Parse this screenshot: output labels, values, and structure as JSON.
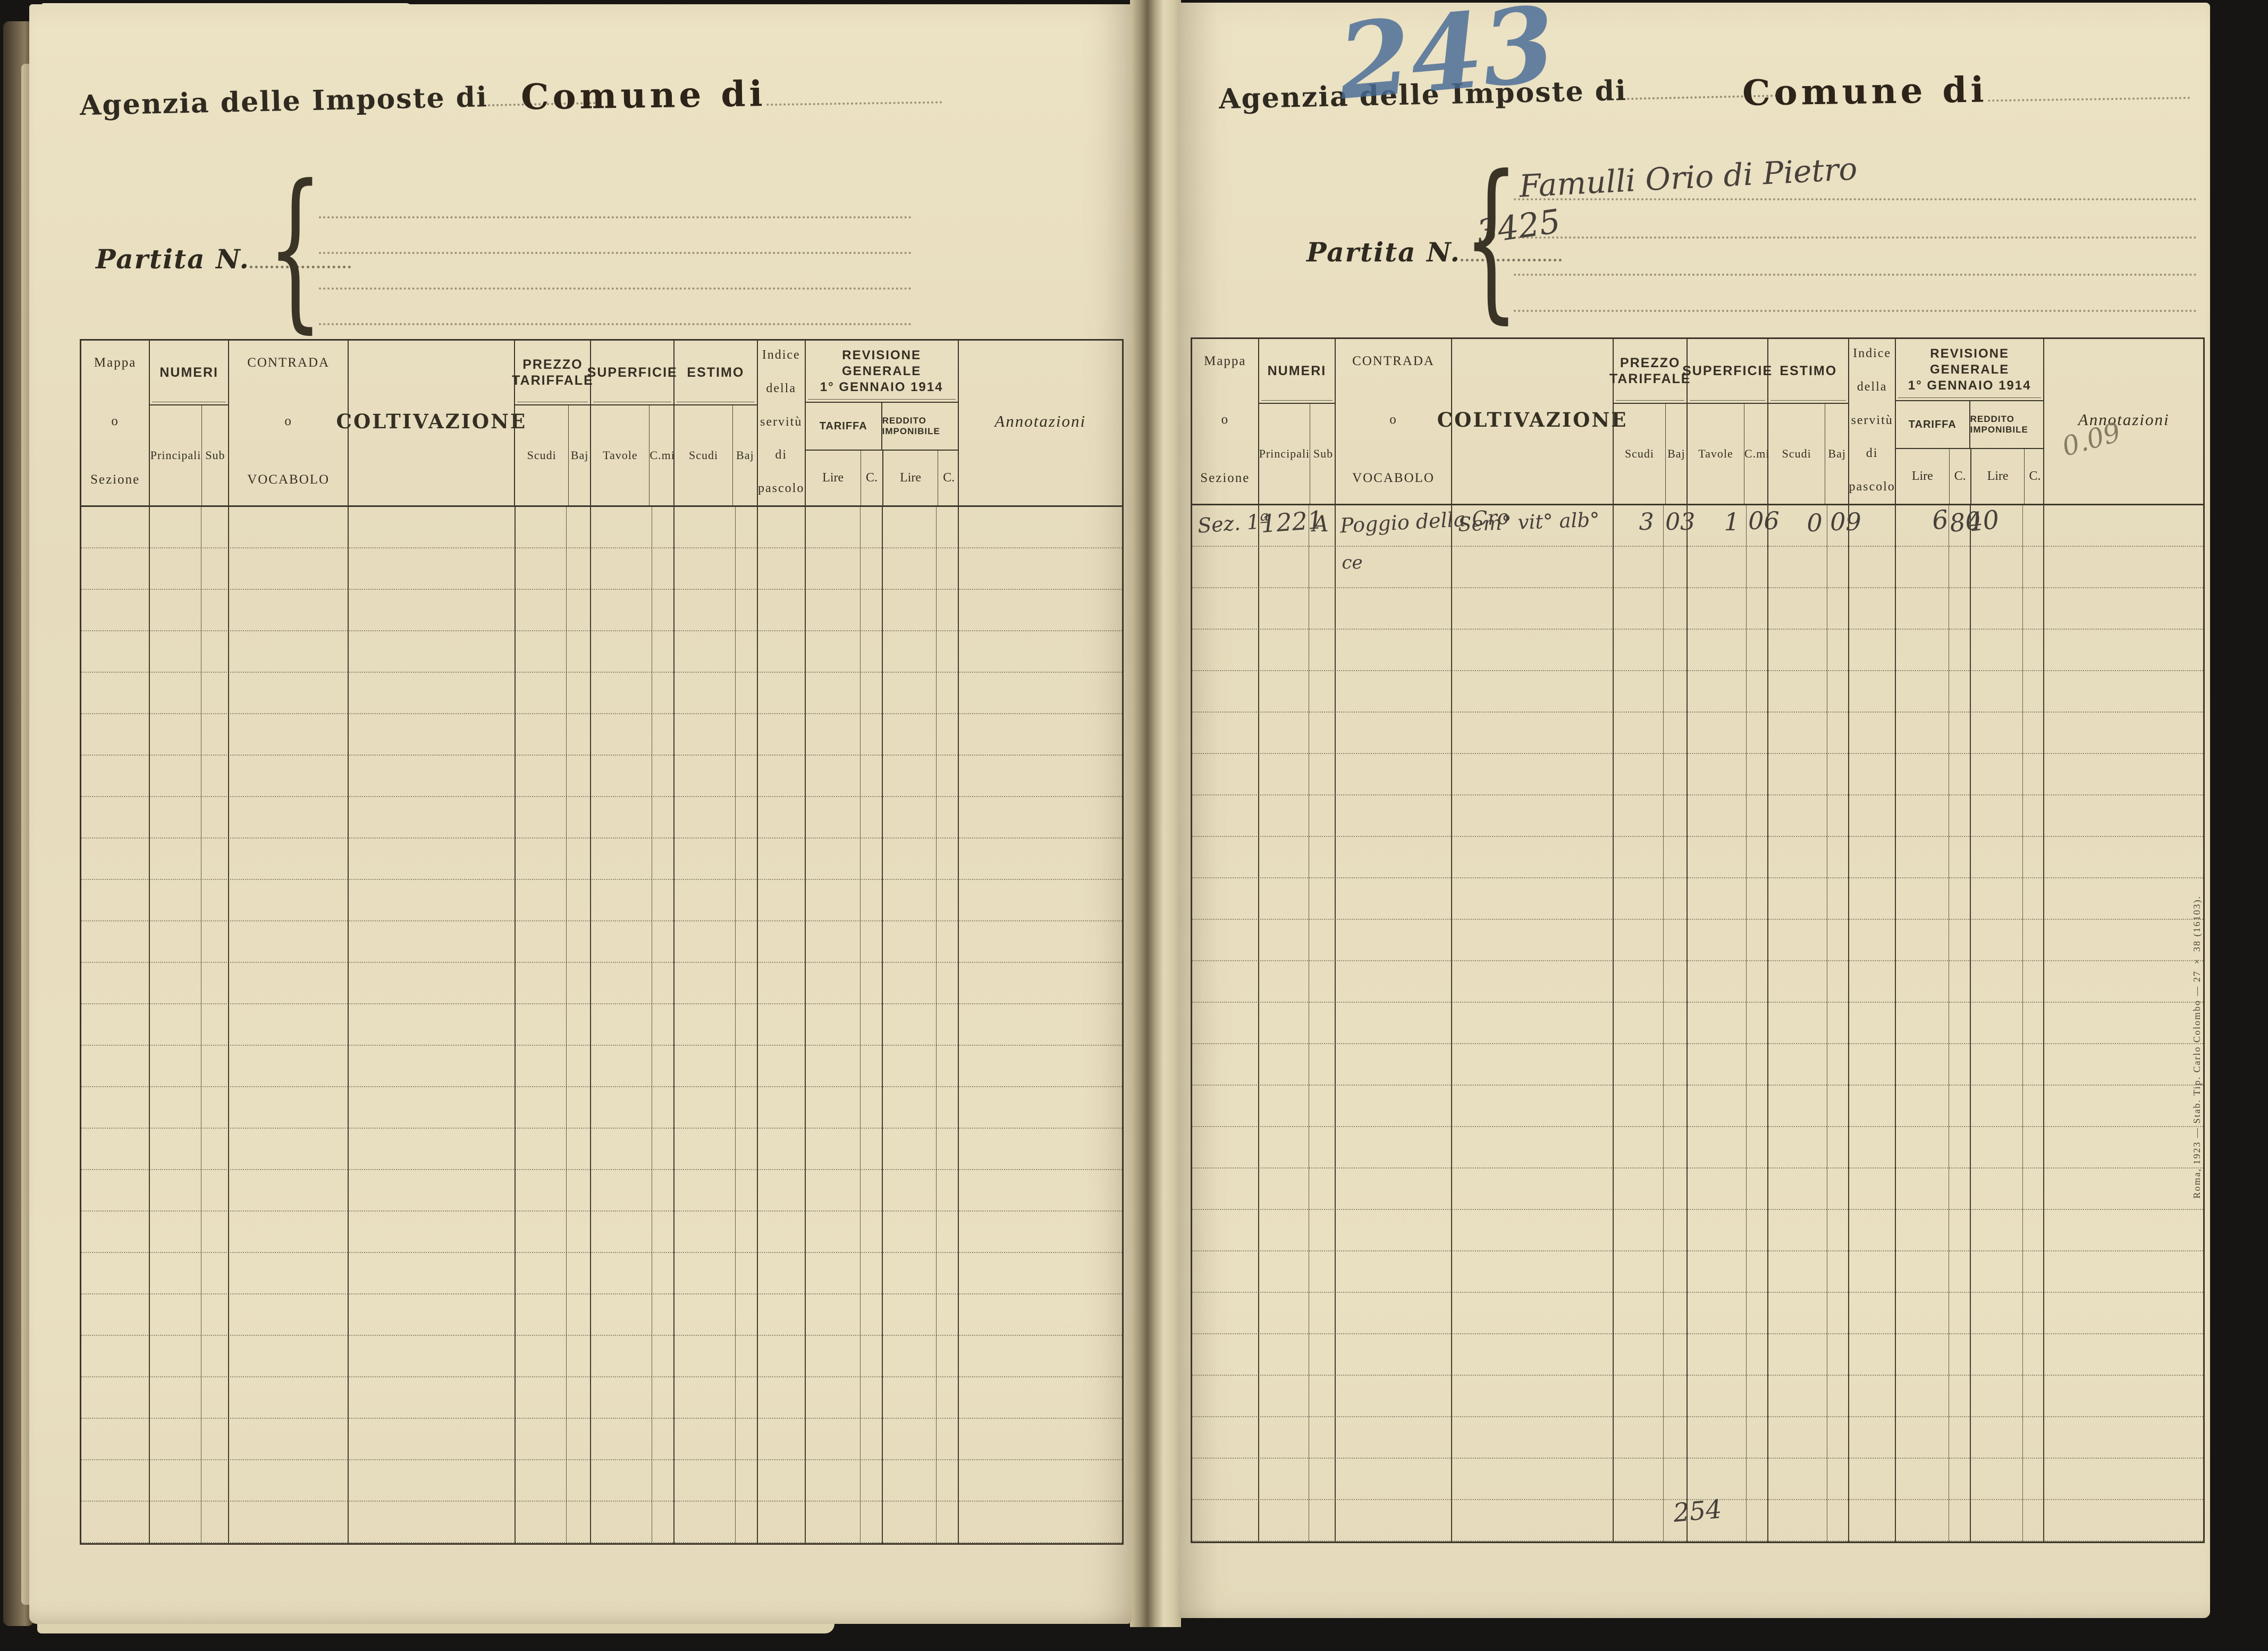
{
  "colors": {
    "paper": "#e8dec0",
    "printed_ink": "#3a3427",
    "handwriting_ink": "#46403a",
    "pencil_blue": "#5b7ba6",
    "pencil_gray": "#8c8471",
    "background": "#161513"
  },
  "document": {
    "left_page": {
      "agenzia_label": "Agenzia delle Imposte di",
      "comune_label": "Comune di",
      "partita_label": "Partita N."
    },
    "right_page": {
      "agenzia_label": "Agenzia delle Imposte di",
      "comune_label": "Comune di",
      "partita_label": "Partita N.",
      "page_number_pencil": "243",
      "partita_value": "3425",
      "intestatario": "Famulli Orio di Pietro",
      "annotazione_matita": "0.09",
      "fondo_pagina_numero": "254",
      "imprint": "Roma, 1923 — Stab. Tip. Carlo Colombo — 27 × 38 (16103)."
    },
    "table_header": {
      "mappa_line1": "Mappa",
      "mappa_line2": "o",
      "mappa_line3": "Sezione",
      "numeri": "NUMERI",
      "principali": "Principali",
      "sub": "Sub",
      "contrada_line1": "CONTRADA",
      "contrada_line2": "o",
      "contrada_line3": "VOCABOLO",
      "coltivazione": "COLTIVAZIONE",
      "prezzo_tariffale": "PREZZO TARIFFALE",
      "superficie": "SUPERFICIE",
      "estimo": "ESTIMO",
      "scudi": "Scudi",
      "baj": "Baj",
      "tavole": "Tavole",
      "cmi": "C.mi",
      "indice_line1": "Indice",
      "indice_line2": "della",
      "indice_line3": "servitù",
      "indice_line4": "di",
      "indice_line5": "pascolo",
      "revisione_line1": "REVISIONE GENERALE",
      "revisione_line2": "1° GENNAIO 1914",
      "tariffa": "TARIFFA",
      "reddito_imponibile": "REDDITO IMPONIBILE",
      "lire": "Lire",
      "c": "C.",
      "annotazioni": "Annotazioni"
    },
    "row1": {
      "sezione": "Sez. 1ª",
      "numero_principale": "1221",
      "sub": "A",
      "contrada_line1": "Poggio della Cro",
      "contrada_line2": "ce",
      "coltivazione": "Sem° vit° alb°",
      "prezzo_scudi": "3",
      "prezzo_baj": "03",
      "superficie_tavole": "1",
      "superficie_cmi": "06",
      "estimo_scudi": "0",
      "estimo_baj": "09",
      "tariffa_lire": "6",
      "tariffa_c": "80",
      "reddito_lire": "40"
    }
  }
}
